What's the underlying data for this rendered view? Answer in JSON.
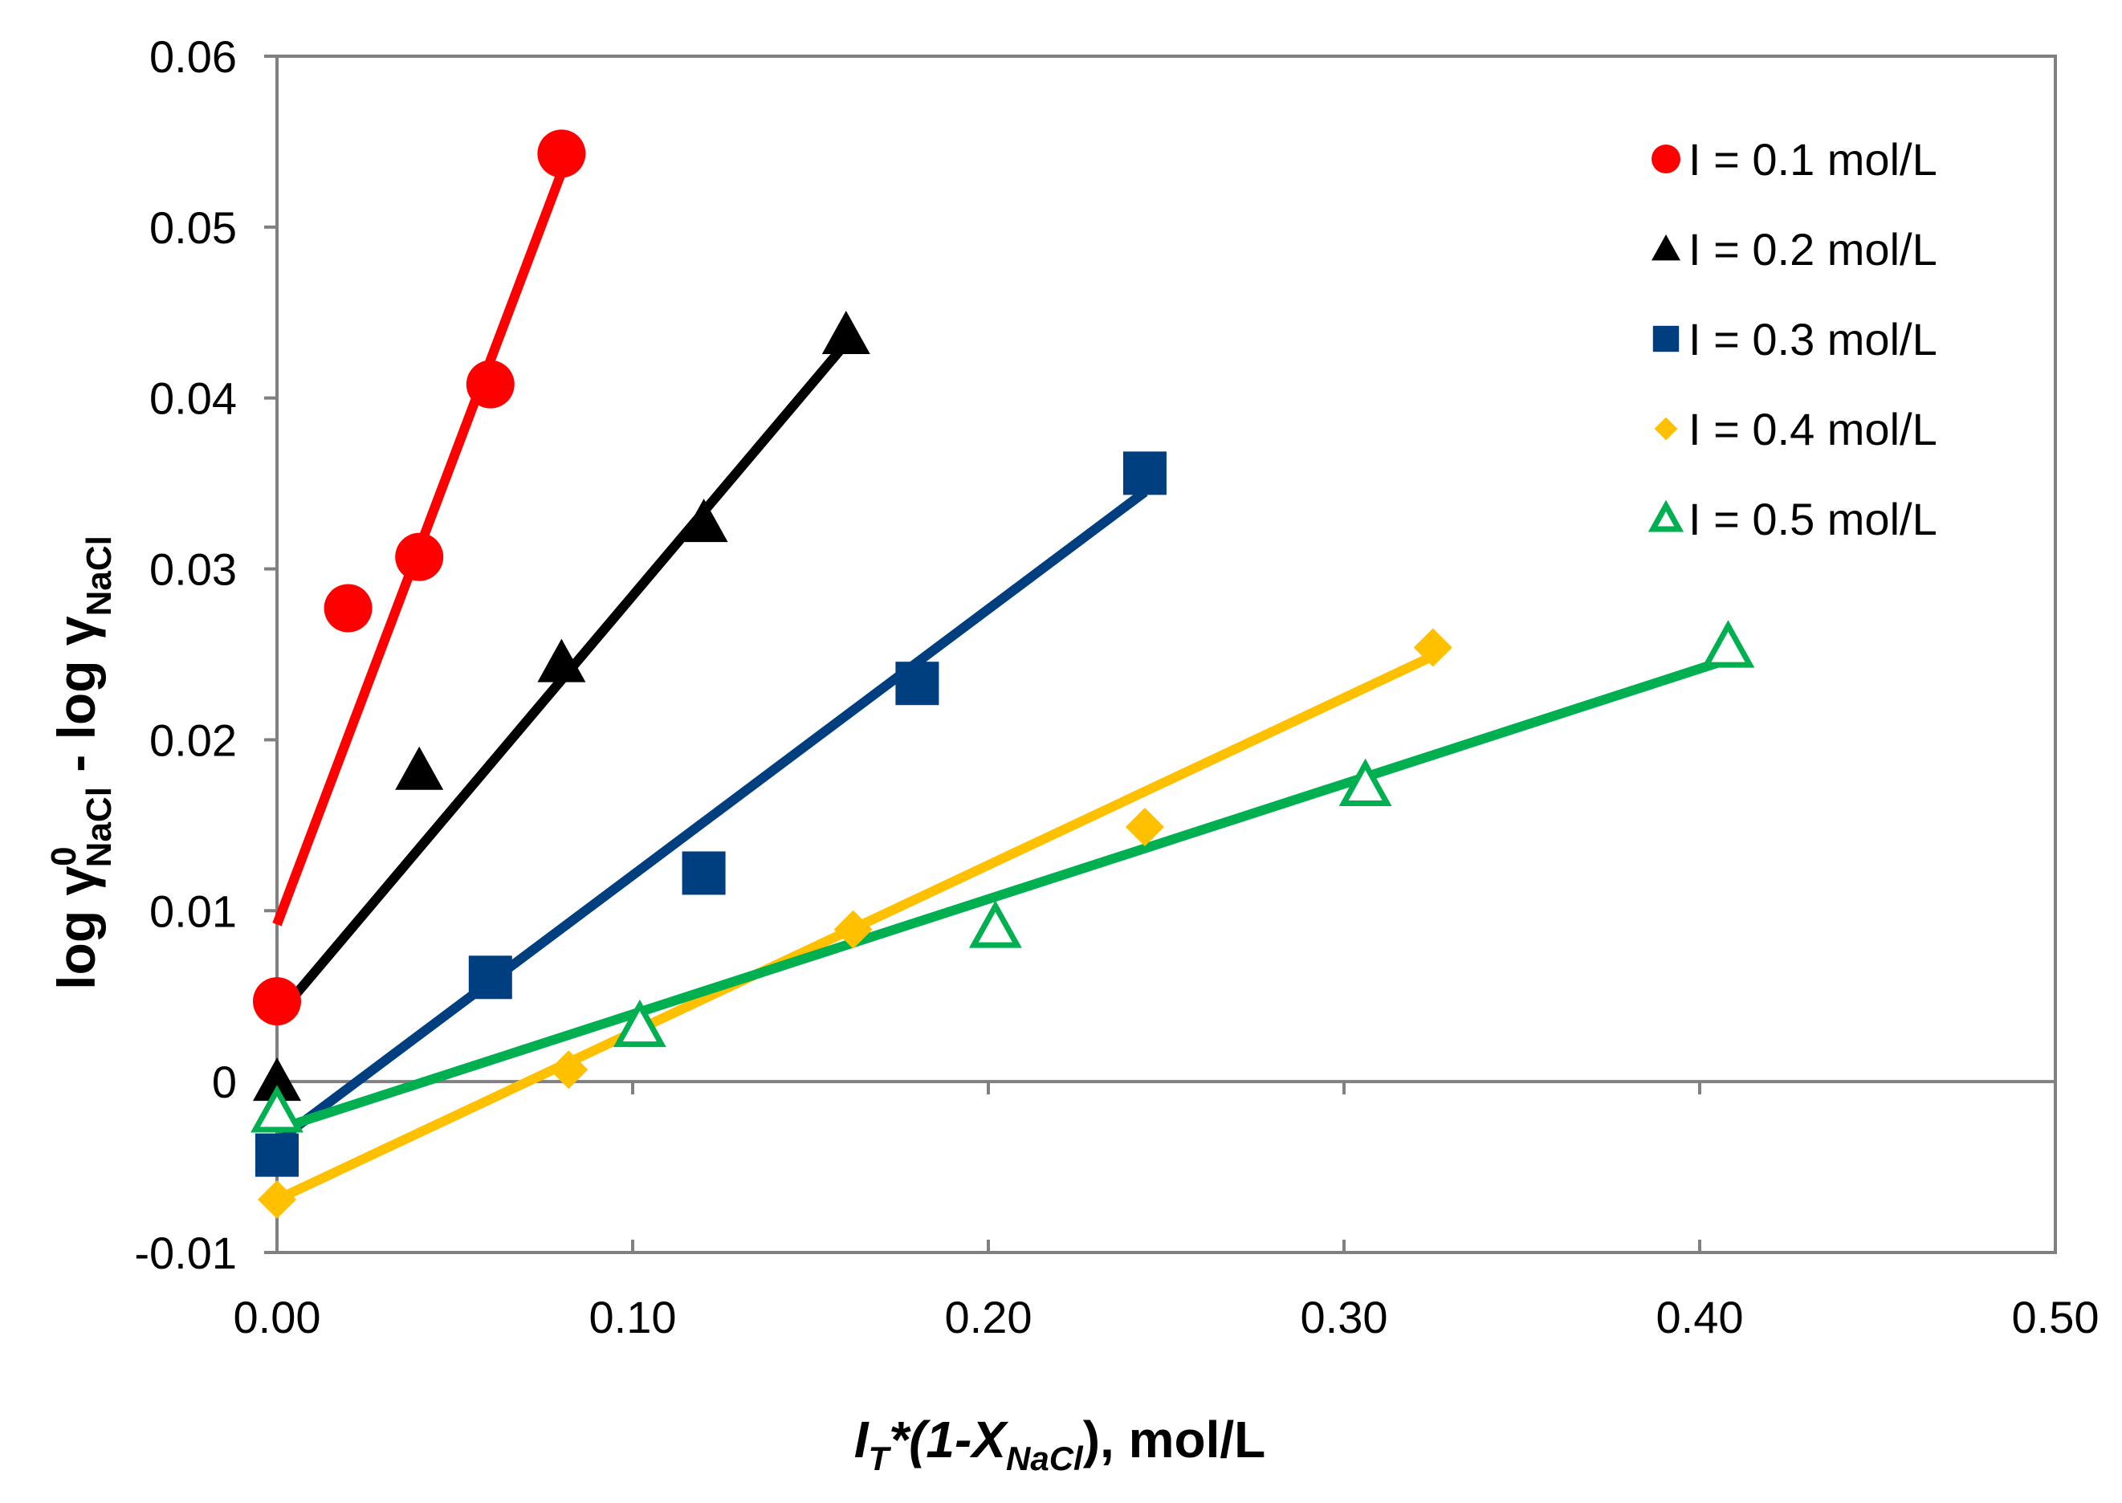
{
  "chart_data": {
    "type": "scatter",
    "title": "",
    "xlabel": {
      "main": "I",
      "main_sub": "T",
      "middle": "*(1-X",
      "middle_sub": "NaCl",
      "tail": "), mol/L"
    },
    "ylabel": {
      "part1": "log γ",
      "sup": "0",
      "sub1": "NaCl",
      "part2": " - log γ",
      "sub2": "NaCl"
    },
    "xlim": [
      0,
      0.5
    ],
    "ylim": [
      -0.01,
      0.06
    ],
    "xticks": [
      0.0,
      0.1,
      0.2,
      0.3,
      0.4,
      0.5
    ],
    "xtick_labels": [
      "0.00",
      "0.10",
      "0.20",
      "0.30",
      "0.40",
      "0.50"
    ],
    "yticks": [
      -0.01,
      0,
      0.01,
      0.02,
      0.03,
      0.04,
      0.05,
      0.06
    ],
    "ytick_labels": [
      "-0.01",
      "0",
      "0.01",
      "0.02",
      "0.03",
      "0.04",
      "0.05",
      "0.06"
    ],
    "grid": false,
    "legend_position": "top-right",
    "series": [
      {
        "name": "I = 0.1 mol/L",
        "color": "#ff0000",
        "marker": "circle",
        "x": [
          0.0,
          0.02,
          0.04,
          0.06,
          0.08
        ],
        "y": [
          0.0047,
          0.0277,
          0.0307,
          0.0408,
          0.0543
        ],
        "fit": [
          [
            0.0,
            0.0092
          ],
          [
            0.082,
            0.0543
          ]
        ]
      },
      {
        "name": "I = 0.2 mol/L",
        "color": "#000000",
        "marker": "triangle",
        "x": [
          0.0,
          0.04,
          0.08,
          0.12,
          0.16
        ],
        "y": [
          0.0,
          0.0182,
          0.0245,
          0.0327,
          0.0437
        ],
        "fit": [
          [
            0.0,
            0.0038
          ],
          [
            0.162,
            0.0437
          ]
        ]
      },
      {
        "name": "I = 0.3 mol/L",
        "color": "#003f7f",
        "marker": "square",
        "x": [
          0.0,
          0.06,
          0.12,
          0.18,
          0.244
        ],
        "y": [
          -0.0043,
          0.0061,
          0.0122,
          0.0233,
          0.0356
        ],
        "fit": [
          [
            0.0,
            -0.0035
          ],
          [
            0.244,
            0.0345
          ]
        ]
      },
      {
        "name": "I = 0.4 mol/L",
        "color": "#ffc000",
        "marker": "diamond",
        "x": [
          0.0,
          0.082,
          0.162,
          0.244,
          0.325
        ],
        "y": [
          -0.0069,
          0.0007,
          0.0089,
          0.0149,
          0.0254
        ],
        "fit": [
          [
            0.0,
            -0.0069
          ],
          [
            0.325,
            0.0249
          ]
        ]
      },
      {
        "name": "I = 0.5 mol/L",
        "color": "#00b050",
        "marker": "triangle-open",
        "x": [
          0.0,
          0.102,
          0.202,
          0.306,
          0.408
        ],
        "y": [
          -0.0018,
          0.0032,
          0.009,
          0.0173,
          0.0254
        ],
        "fit": [
          [
            0.0,
            -0.0028
          ],
          [
            0.408,
            0.0247
          ]
        ]
      }
    ]
  }
}
